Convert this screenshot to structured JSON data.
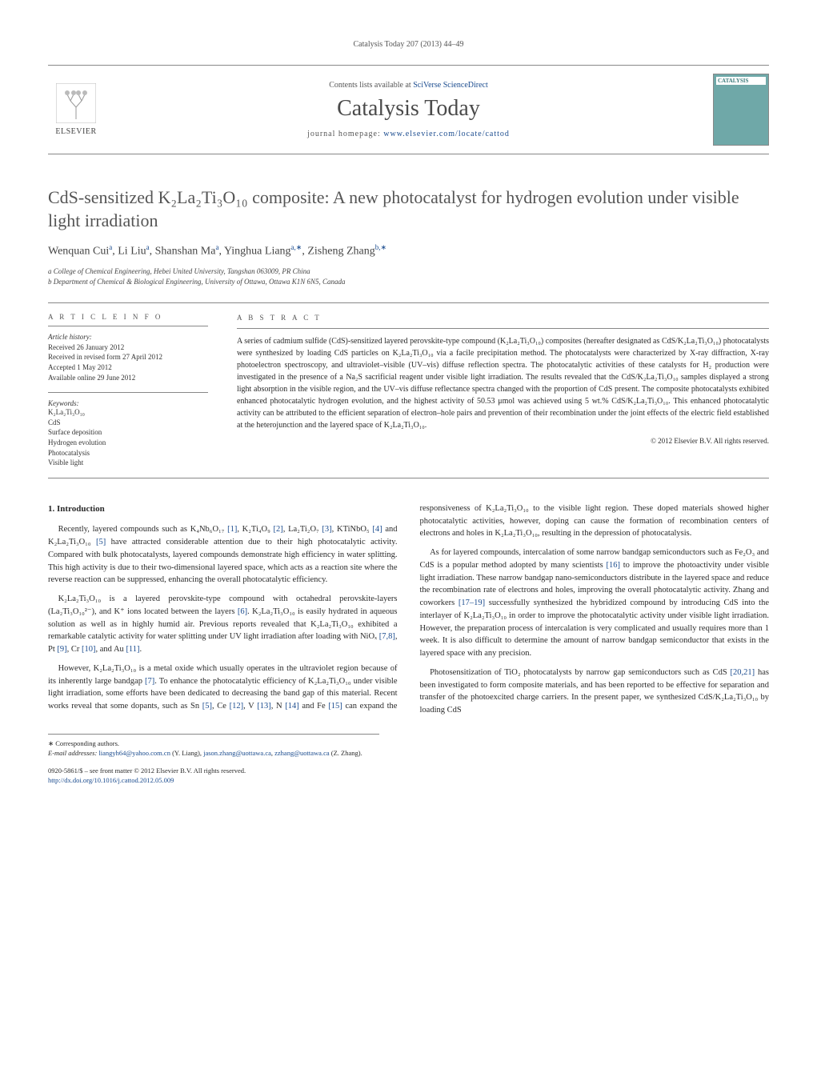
{
  "runningHead": "Catalysis Today 207 (2013) 44–49",
  "masthead": {
    "elsevierName": "ELSEVIER",
    "contentsListsPrefix": "Contents lists available at ",
    "contentsListsLink": "SciVerse ScienceDirect",
    "journalTitle": "Catalysis Today",
    "homepagePrefix": "journal homepage: ",
    "homepageLink": "www.elsevier.com/locate/cattod",
    "coverLabel": "CATALYSIS"
  },
  "article": {
    "title": "CdS-sensitized K₂La₂Ti₃O₁₀ composite: A new photocatalyst for hydrogen evolution under visible light irradiation",
    "authorsHtml": "Wenquan Cui<sup>a</sup>, Li Liu<sup>a</sup>, Shanshan Ma<sup>a</sup>, Yinghua Liang<sup>a,∗</sup>, Zisheng Zhang<sup>b,∗</sup>",
    "affiliations": {
      "a": "a College of Chemical Engineering, Hebei United University, Tangshan 063009, PR China",
      "b": "b Department of Chemical & Biological Engineering, University of Ottawa, Ottawa K1N 6N5, Canada"
    }
  },
  "info": {
    "heading": "a r t i c l e   i n f o",
    "historyLabel": "Article history:",
    "history": [
      "Received 26 January 2012",
      "Received in revised form 27 April 2012",
      "Accepted 1 May 2012",
      "Available online 29 June 2012"
    ],
    "keywordsLabel": "Keywords:",
    "keywords": [
      "K₂La₂Ti₃O₁₀",
      "CdS",
      "Surface deposition",
      "Hydrogen evolution",
      "Photocatalysis",
      "Visible light"
    ]
  },
  "abstract": {
    "heading": "a b s t r a c t",
    "body": "A series of cadmium sulfide (CdS)-sensitized layered perovskite-type compound (K₂La₂Ti₃O₁₀) composites (hereafter designated as CdS/K₂La₂Ti₃O₁₀) photocatalysts were synthesized by loading CdS particles on K₂La₂Ti₃O₁₀ via a facile precipitation method. The photocatalysts were characterized by X-ray diffraction, X-ray photoelectron spectroscopy, and ultraviolet–visible (UV–vis) diffuse reflection spectra. The photocatalytic activities of these catalysts for H₂ production were investigated in the presence of a Na₂S sacrificial reagent under visible light irradiation. The results revealed that the CdS/K₂La₂Ti₃O₁₀ samples displayed a strong light absorption in the visible region, and the UV–vis diffuse reflectance spectra changed with the proportion of CdS present. The composite photocatalysts exhibited enhanced photocatalytic hydrogen evolution, and the highest activity of 50.53 μmol was achieved using 5 wt.% CdS/K₂La₂Ti₃O₁₀. This enhanced photocatalytic activity can be attributed to the efficient separation of electron–hole pairs and prevention of their recombination under the joint effects of the electric field established at the heterojunction and the layered space of K₂La₂Ti₃O₁₀.",
    "copyright": "© 2012 Elsevier B.V. All rights reserved."
  },
  "body": {
    "sectionHeading": "1. Introduction",
    "paragraphs": [
      "Recently, layered compounds such as K₄Nb₆O₁₇ <a>[1]</a>, K₂Ti₄O₉ <a>[2]</a>, La₂Ti₂O₇ <a>[3]</a>, KTiNbO₅ <a>[4]</a> and K₂La₂Ti₃O₁₀ <a>[5]</a> have attracted considerable attention due to their high photocatalytic activity. Compared with bulk photocatalysts, layered compounds demonstrate high efficiency in water splitting. This high activity is due to their two-dimensional layered space, which acts as a reaction site where the reverse reaction can be suppressed, enhancing the overall photocatalytic efficiency.",
      "K₂La₂Ti₃O₁₀ is a layered perovskite-type compound with octahedral perovskite-layers (La₂Ti₃O₁₀²⁻), and K⁺ ions located between the layers <a>[6]</a>. K₂La₂Ti₃O₁₀ is easily hydrated in aqueous solution as well as in highly humid air. Previous reports revealed that K₂La₂Ti₃O₁₀ exhibited a remarkable catalytic activity for water splitting under UV light irradiation after loading with NiOₓ <a>[7,8]</a>, Pt <a>[9]</a>, Cr <a>[10]</a>, and Au <a>[11]</a>.",
      "However, K₂La₂Ti₃O₁₀ is a metal oxide which usually operates in the ultraviolet region because of its inherently large bandgap <a>[7]</a>. To enhance the photocatalytic efficiency of K₂La₂Ti₃O₁₀ under visible light irradiation, some efforts have been dedicated to decreasing the band gap of this material. Recent works reveal that some dopants, such as Sn <a>[5]</a>, Ce <a>[12]</a>, V <a>[13]</a>, N <a>[14]</a> and Fe <a>[15]</a> can expand the responsiveness of K₂La₂Ti₃O₁₀ to the visible light region. These doped materials showed higher photocatalytic activities, however, doping can cause the formation of recombination centers of electrons and holes in K₂La₂Ti₃O₁₀, resulting in the depression of photocatalysis.",
      "As for layered compounds, intercalation of some narrow bandgap semiconductors such as Fe₂O₃ and CdS is a popular method adopted by many scientists <a>[16]</a> to improve the photoactivity under visible light irradiation. These narrow bandgap nano-semiconductors distribute in the layered space and reduce the recombination rate of electrons and holes, improving the overall photocatalytic activity. Zhang and coworkers <a>[17–19]</a> successfully synthesized the hybridized compound by introducing CdS into the interlayer of K₂La₂Ti₃O₁₀ in order to improve the photocatalytic activity under visible light irradiation. However, the preparation process of intercalation is very complicated and usually requires more than 1 week. It is also difficult to determine the amount of narrow bandgap semiconductor that exists in the layered space with any precision.",
      "Photosensitization of TiO₂ photocatalysts by narrow gap semiconductors such as CdS <a>[20,21]</a> has been investigated to form composite materials, and has been reported to be effective for separation and transfer of the photoexcited charge carriers. In the present paper, we synthesized CdS/K₂La₂Ti₃O₁₀ by loading CdS"
    ]
  },
  "footer": {
    "corrLabel": "∗ Corresponding authors.",
    "emailLabel": "E-mail addresses: ",
    "emails": [
      {
        "addr": "liangyh64@yahoo.com.cn",
        "who": " (Y. Liang), "
      },
      {
        "addr": "jason.zhang@uottawa.ca",
        "who": ", "
      },
      {
        "addr": "zzhang@uottawa.ca",
        "who": " (Z. Zhang)."
      }
    ],
    "issnLine": "0920-5861/$ – see front matter © 2012 Elsevier B.V. All rights reserved.",
    "doi": "http://dx.doi.org/10.1016/j.cattod.2012.05.009"
  }
}
